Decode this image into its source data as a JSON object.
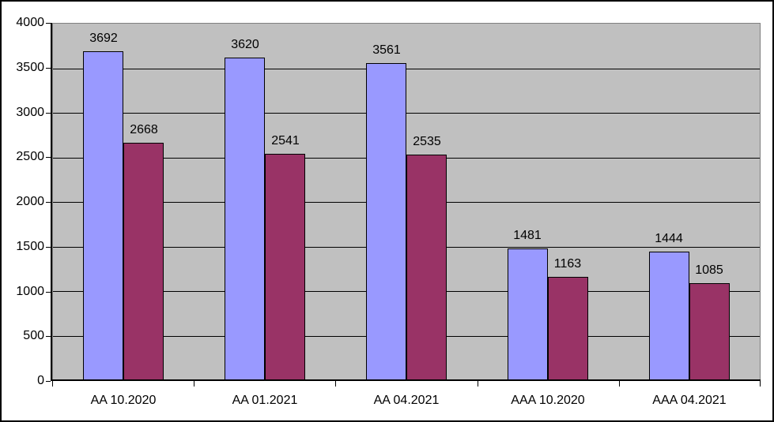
{
  "chart_data": {
    "type": "bar",
    "title": "",
    "xlabel": "",
    "ylabel": "",
    "categories": [
      "AA 10.2020",
      "AA 01.2021",
      "AA 04.2021",
      "AAA 10.2020",
      "AAA 04.2021"
    ],
    "series": [
      {
        "name": "series-1-blue",
        "color": "#9999FF",
        "values": [
          3692,
          3620,
          3561,
          1481,
          1444
        ]
      },
      {
        "name": "series-2-maroon",
        "color": "#993366",
        "values": [
          2668,
          2541,
          2535,
          1163,
          1085
        ]
      }
    ],
    "data_labels": [
      [
        "3692",
        "3620",
        "3561",
        "1481",
        "1444"
      ],
      [
        "2668",
        "2541",
        "2535",
        "1163",
        "1085"
      ]
    ],
    "ylim": [
      0,
      4000
    ],
    "ytick_interval": 500,
    "ytick_labels": [
      "0",
      "500",
      "1000",
      "1500",
      "2000",
      "2500",
      "3000",
      "3500",
      "4000"
    ],
    "grid": true,
    "legend": "none",
    "colors": {
      "plot_bg": "#C0C0C0",
      "plot_border": "#808080",
      "gridline": "#000000",
      "axis": "#000000",
      "text": "#000000",
      "chart_bg": "#FFFFFF",
      "chart_border": "#000000",
      "bar_border": "#000000"
    }
  }
}
